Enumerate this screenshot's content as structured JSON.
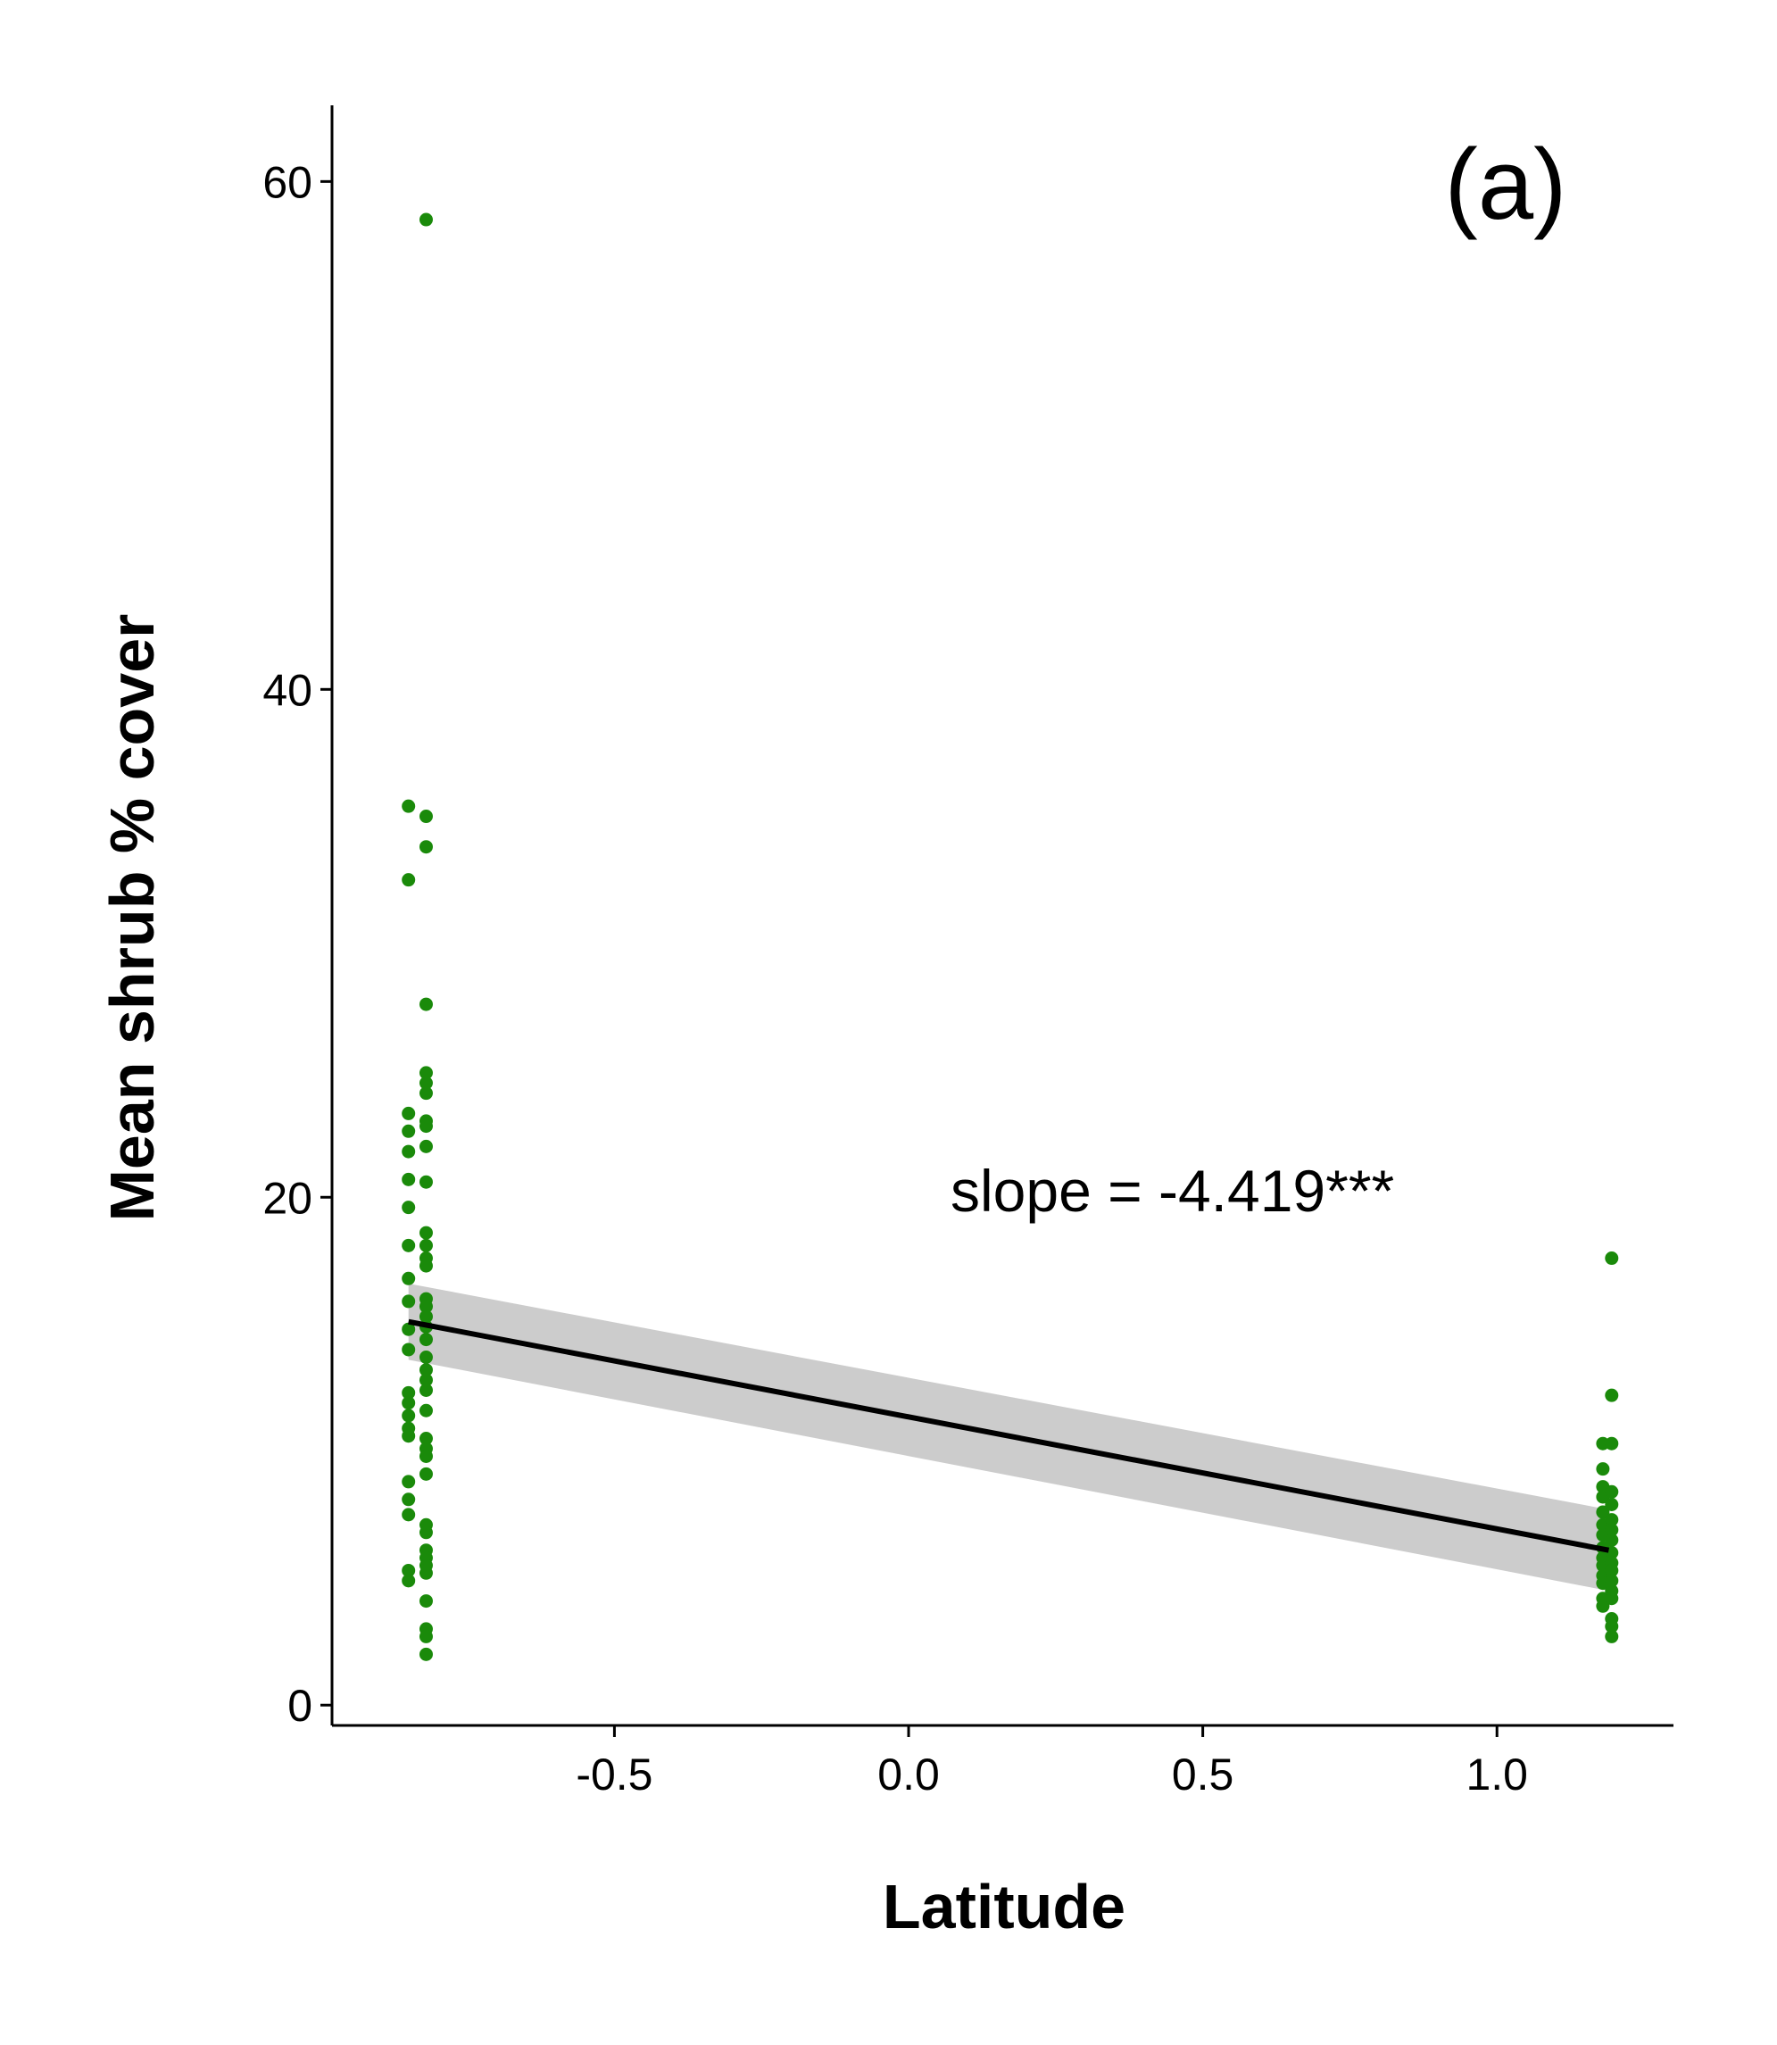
{
  "chart_data": {
    "type": "scatter",
    "panel_label": "(a)",
    "annotation": "slope = -4.419***",
    "xlabel": "Latitude",
    "ylabel": "Mean shrub % cover",
    "xlim": [
      -0.98,
      1.3
    ],
    "ylim": [
      -0.8,
      63.0
    ],
    "xticks": [
      -0.5,
      0.0,
      0.5,
      1.0
    ],
    "xtick_labels": [
      "-0.5",
      "0.0",
      "0.5",
      "1.0"
    ],
    "yticks": [
      0,
      20,
      40,
      60
    ],
    "ytick_labels": [
      "0",
      "20",
      "40",
      "60"
    ],
    "grid": false,
    "point_color": "#1a8a0a",
    "line_color": "#000000",
    "band_color": "#cccccc",
    "fit": {
      "x": [
        -0.85,
        1.19
      ],
      "y": [
        15.1,
        6.1
      ],
      "ci_lower": [
        13.6,
        4.5
      ],
      "ci_upper": [
        16.6,
        7.7
      ]
    },
    "points": [
      {
        "x": -0.85,
        "y": 35.4
      },
      {
        "x": -0.85,
        "y": 32.5
      },
      {
        "x": -0.85,
        "y": 23.3
      },
      {
        "x": -0.85,
        "y": 22.6
      },
      {
        "x": -0.85,
        "y": 21.8
      },
      {
        "x": -0.85,
        "y": 20.7
      },
      {
        "x": -0.85,
        "y": 19.6
      },
      {
        "x": -0.85,
        "y": 18.1
      },
      {
        "x": -0.85,
        "y": 16.8
      },
      {
        "x": -0.85,
        "y": 15.9
      },
      {
        "x": -0.85,
        "y": 14.8
      },
      {
        "x": -0.85,
        "y": 14.0
      },
      {
        "x": -0.85,
        "y": 12.3
      },
      {
        "x": -0.85,
        "y": 11.9
      },
      {
        "x": -0.85,
        "y": 11.4
      },
      {
        "x": -0.85,
        "y": 10.9
      },
      {
        "x": -0.85,
        "y": 10.6
      },
      {
        "x": -0.85,
        "y": 8.8
      },
      {
        "x": -0.85,
        "y": 8.1
      },
      {
        "x": -0.85,
        "y": 7.5
      },
      {
        "x": -0.85,
        "y": 5.3
      },
      {
        "x": -0.85,
        "y": 4.9
      },
      {
        "x": -0.82,
        "y": 58.5
      },
      {
        "x": -0.82,
        "y": 35.0
      },
      {
        "x": -0.82,
        "y": 33.8
      },
      {
        "x": -0.82,
        "y": 27.6
      },
      {
        "x": -0.82,
        "y": 24.9
      },
      {
        "x": -0.82,
        "y": 24.5
      },
      {
        "x": -0.82,
        "y": 24.1
      },
      {
        "x": -0.82,
        "y": 23.0
      },
      {
        "x": -0.82,
        "y": 22.8
      },
      {
        "x": -0.82,
        "y": 22.0
      },
      {
        "x": -0.82,
        "y": 20.6
      },
      {
        "x": -0.82,
        "y": 18.6
      },
      {
        "x": -0.82,
        "y": 18.1
      },
      {
        "x": -0.82,
        "y": 17.6
      },
      {
        "x": -0.82,
        "y": 17.3
      },
      {
        "x": -0.82,
        "y": 16.0
      },
      {
        "x": -0.82,
        "y": 15.7
      },
      {
        "x": -0.82,
        "y": 15.3
      },
      {
        "x": -0.82,
        "y": 14.9
      },
      {
        "x": -0.82,
        "y": 14.4
      },
      {
        "x": -0.82,
        "y": 13.7
      },
      {
        "x": -0.82,
        "y": 13.2
      },
      {
        "x": -0.82,
        "y": 12.8
      },
      {
        "x": -0.82,
        "y": 12.4
      },
      {
        "x": -0.82,
        "y": 11.6
      },
      {
        "x": -0.82,
        "y": 10.5
      },
      {
        "x": -0.82,
        "y": 10.1
      },
      {
        "x": -0.82,
        "y": 9.8
      },
      {
        "x": -0.82,
        "y": 9.1
      },
      {
        "x": -0.82,
        "y": 7.1
      },
      {
        "x": -0.82,
        "y": 6.8
      },
      {
        "x": -0.82,
        "y": 6.1
      },
      {
        "x": -0.82,
        "y": 5.8
      },
      {
        "x": -0.82,
        "y": 5.5
      },
      {
        "x": -0.82,
        "y": 5.2
      },
      {
        "x": -0.82,
        "y": 4.1
      },
      {
        "x": -0.82,
        "y": 3.0
      },
      {
        "x": -0.82,
        "y": 2.7
      },
      {
        "x": -0.82,
        "y": 2.0
      },
      {
        "x": 1.18,
        "y": 10.3
      },
      {
        "x": 1.18,
        "y": 9.3
      },
      {
        "x": 1.18,
        "y": 8.6
      },
      {
        "x": 1.18,
        "y": 8.2
      },
      {
        "x": 1.18,
        "y": 7.6
      },
      {
        "x": 1.18,
        "y": 7.1
      },
      {
        "x": 1.18,
        "y": 6.7
      },
      {
        "x": 1.18,
        "y": 6.2
      },
      {
        "x": 1.18,
        "y": 5.8
      },
      {
        "x": 1.18,
        "y": 5.5
      },
      {
        "x": 1.18,
        "y": 5.1
      },
      {
        "x": 1.18,
        "y": 4.8
      },
      {
        "x": 1.18,
        "y": 4.2
      },
      {
        "x": 1.18,
        "y": 3.9
      },
      {
        "x": 1.195,
        "y": 17.6
      },
      {
        "x": 1.195,
        "y": 12.2
      },
      {
        "x": 1.195,
        "y": 10.3
      },
      {
        "x": 1.195,
        "y": 8.4
      },
      {
        "x": 1.195,
        "y": 7.9
      },
      {
        "x": 1.195,
        "y": 7.3
      },
      {
        "x": 1.195,
        "y": 6.9
      },
      {
        "x": 1.195,
        "y": 6.5
      },
      {
        "x": 1.195,
        "y": 6.0
      },
      {
        "x": 1.195,
        "y": 5.6
      },
      {
        "x": 1.195,
        "y": 5.3
      },
      {
        "x": 1.195,
        "y": 4.9
      },
      {
        "x": 1.195,
        "y": 4.5
      },
      {
        "x": 1.195,
        "y": 4.2
      },
      {
        "x": 1.195,
        "y": 3.4
      },
      {
        "x": 1.195,
        "y": 3.1
      },
      {
        "x": 1.195,
        "y": 2.7
      }
    ]
  }
}
